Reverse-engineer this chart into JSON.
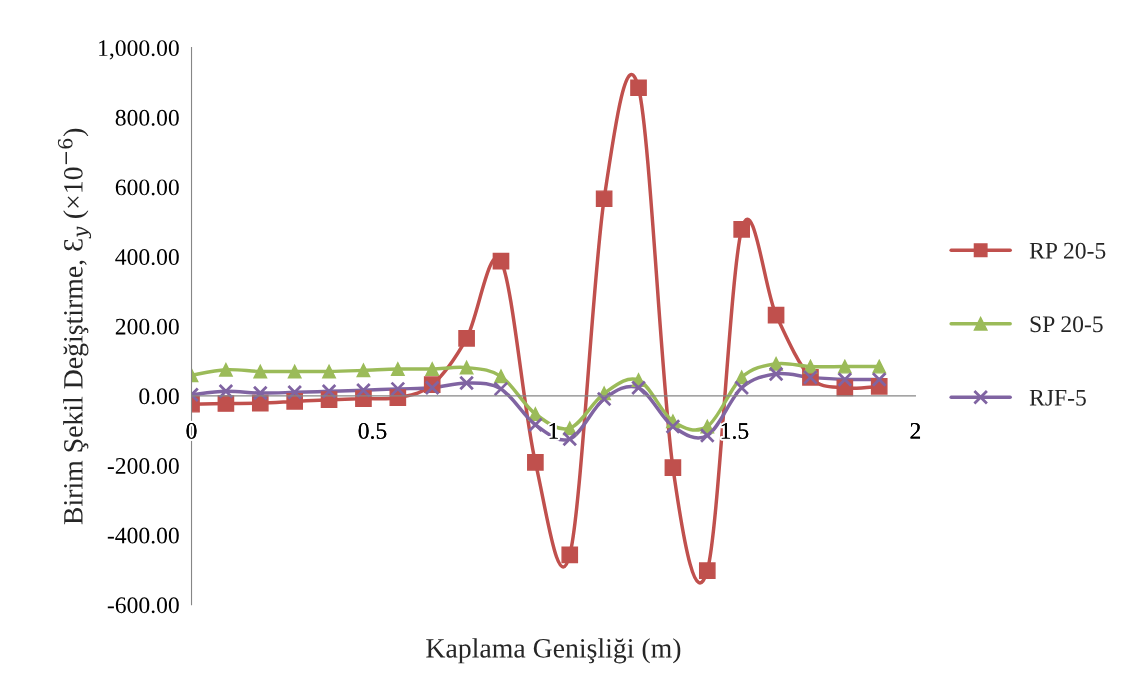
{
  "chart_data": {
    "type": "line",
    "xlabel": "Kaplama Genişliği (m)",
    "ylabel": "Birim Şekil Değiştirme, Ɛ$_{y}$ (×10$^{−6}$)",
    "x": [
      0,
      0.095,
      0.19,
      0.285,
      0.38,
      0.475,
      0.57,
      0.665,
      0.76,
      0.855,
      0.95,
      1.045,
      1.14,
      1.235,
      1.33,
      1.425,
      1.52,
      1.615,
      1.71,
      1.805,
      1.9
    ],
    "series": [
      {
        "name": "RP 20-5",
        "color": "#c0504d",
        "marker": "square",
        "values": [
          -24,
          -22,
          -21,
          -16,
          -11,
          -8,
          -5,
          32,
          165,
          387,
          -191,
          -457,
          566,
          885,
          -206,
          -502,
          478,
          232,
          53,
          23,
          27
        ]
      },
      {
        "name": "SP 20-5",
        "color": "#9bbb59",
        "marker": "triangle",
        "values": [
          59,
          75,
          70,
          70,
          70,
          73,
          77,
          77,
          81,
          56,
          -52,
          -93,
          7,
          45,
          -73,
          -88,
          53,
          92,
          84,
          84,
          84
        ]
      },
      {
        "name": "RJF-5",
        "color": "#8064a2",
        "marker": "cross",
        "values": [
          3,
          13,
          8,
          10,
          13,
          16,
          20,
          23,
          37,
          20,
          -83,
          -124,
          -9,
          23,
          -88,
          -114,
          23,
          63,
          53,
          47,
          47
        ]
      }
    ],
    "xlim": [
      0,
      2
    ],
    "xticks": [
      0,
      0.5,
      1,
      1.5,
      2
    ],
    "ylim": [
      -600,
      1000
    ],
    "yticks": [
      {
        "value": -600,
        "label": "-600.00"
      },
      {
        "value": -400,
        "label": "-400.00"
      },
      {
        "value": -200,
        "label": "-200.00"
      },
      {
        "value": 0,
        "label": "0.00"
      },
      {
        "value": 200,
        "label": "200.00"
      },
      {
        "value": 400,
        "label": "400.00"
      },
      {
        "value": 600,
        "label": "600.00"
      },
      {
        "value": 800,
        "label": "800.00"
      },
      {
        "value": 1000,
        "label": "1,000.00"
      }
    ],
    "grid": false,
    "legend": "right",
    "line_style": "solid"
  }
}
